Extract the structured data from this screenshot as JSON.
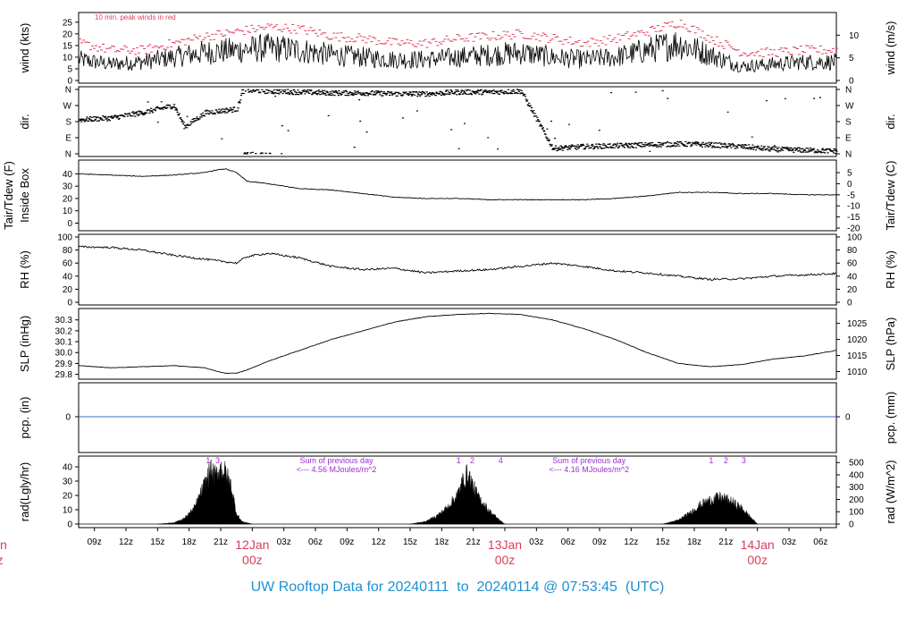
{
  "footer": {
    "prefix": "UW Rooftop Data for",
    "start": "20240111",
    "to": "to",
    "end": "20240114 @ 07:53:45",
    "tz": "(UTC)"
  },
  "colors": {
    "peak": "#e0405e",
    "day": "#d6405a",
    "sun": "#9b30d0",
    "pcp": "#3a6fc4",
    "title": "#1e90d2"
  },
  "time_axis": {
    "ticks": [
      "09z",
      "12z",
      "15z",
      "18z",
      "21z",
      "00z",
      "03z",
      "06z",
      "09z",
      "12z",
      "15z",
      "18z",
      "21z",
      "00z",
      "03z",
      "06z",
      "09z",
      "12z",
      "15z",
      "18z",
      "21z",
      "00z",
      "03z",
      "06z"
    ],
    "day_labels": [
      {
        "date": "12Jan",
        "time": "00z"
      },
      {
        "date": "13Jan",
        "time": "00z"
      },
      {
        "date": "14Jan",
        "time": "00z"
      }
    ],
    "left_clip": {
      "date": "an",
      "time": "z"
    }
  },
  "chart_data": [
    {
      "type": "line",
      "panel": "wind",
      "ylabel": "wind (kts)",
      "ylabel_right": "wind (m/s)",
      "yticks": [
        0,
        5,
        10,
        15,
        20,
        25
      ],
      "ylim": [
        0,
        28
      ],
      "yticks_right": [
        0,
        5,
        10
      ],
      "annotation": "10 min. peak winds in red",
      "series": [
        {
          "name": "wind",
          "x": [
            0,
            3,
            6,
            9,
            12,
            15,
            18,
            21,
            24,
            27,
            30,
            33,
            36,
            39,
            42,
            45,
            48,
            51,
            54,
            57,
            60,
            63,
            66,
            69,
            72
          ],
          "values": [
            9,
            7,
            8,
            10,
            12,
            13,
            14,
            13,
            11,
            10,
            9,
            9,
            10,
            11,
            12,
            10,
            9,
            10,
            13,
            16,
            11,
            6,
            7,
            8,
            8
          ]
        },
        {
          "name": "peak",
          "x": [
            0,
            3,
            6,
            9,
            12,
            15,
            18,
            21,
            24,
            27,
            30,
            33,
            36,
            39,
            42,
            45,
            48,
            51,
            54,
            57,
            60,
            63,
            66,
            69,
            72
          ],
          "values": [
            16,
            13,
            13,
            16,
            19,
            21,
            23,
            22,
            19,
            18,
            16,
            16,
            18,
            19,
            20,
            18,
            16,
            18,
            21,
            25,
            18,
            12,
            12,
            13,
            13
          ]
        }
      ]
    },
    {
      "type": "scatter",
      "panel": "direction",
      "ylabel": "dir.",
      "ylabel_right": "dir.",
      "yticks": [
        "N",
        "E",
        "S",
        "W",
        "N"
      ],
      "ylim": [
        0,
        360
      ],
      "x": [
        0,
        3,
        6,
        9,
        10,
        12,
        15,
        15.5,
        16,
        18,
        21,
        24,
        27,
        30,
        33,
        36,
        39,
        42,
        45,
        48,
        51,
        54,
        57,
        60,
        63,
        66,
        69,
        72
      ],
      "values": [
        190,
        200,
        230,
        270,
        150,
        230,
        250,
        350,
        355,
        350,
        345,
        340,
        340,
        335,
        335,
        345,
        345,
        350,
        30,
        40,
        45,
        50,
        55,
        50,
        40,
        25,
        20,
        15
      ]
    },
    {
      "type": "line",
      "panel": "temperature",
      "ylabel": "Tair/Tdew (F)",
      "ylabel2": "Inside Box",
      "ylabel_right": "Tair/Tdew (C)",
      "yticks": [
        0,
        10,
        20,
        30,
        40
      ],
      "yticks_right": [
        5,
        0,
        -5,
        -10,
        -15,
        -20
      ],
      "ylim": [
        -4,
        49
      ],
      "x": [
        0,
        3,
        6,
        9,
        12,
        13,
        14,
        15,
        16,
        18,
        21,
        24,
        27,
        30,
        33,
        36,
        39,
        42,
        45,
        48,
        51,
        54,
        57,
        60,
        63,
        66,
        69,
        72
      ],
      "values": [
        40,
        39,
        38,
        39,
        41,
        43,
        44,
        41,
        34,
        32,
        28,
        27,
        24,
        21,
        20,
        20,
        19,
        19,
        19,
        19,
        20,
        22,
        25,
        25,
        24,
        24,
        23,
        23
      ]
    },
    {
      "type": "line",
      "panel": "humidity",
      "ylabel": "RH (%)",
      "ylabel_right": "RH (%)",
      "yticks": [
        0,
        20,
        40,
        60,
        80,
        100
      ],
      "ylim": [
        0,
        100
      ],
      "x": [
        0,
        3,
        6,
        9,
        12,
        15,
        16,
        18,
        21,
        24,
        27,
        30,
        33,
        36,
        39,
        42,
        45,
        48,
        51,
        54,
        57,
        60,
        63,
        66,
        69,
        72
      ],
      "values": [
        85,
        84,
        80,
        72,
        66,
        60,
        70,
        75,
        68,
        55,
        50,
        52,
        45,
        48,
        50,
        55,
        60,
        55,
        48,
        45,
        40,
        35,
        36,
        40,
        42,
        44
      ]
    },
    {
      "type": "line",
      "panel": "pressure",
      "ylabel": "SLP (inHg)",
      "ylabel_right": "SLP (hPa)",
      "yticks": [
        29.8,
        29.9,
        30.0,
        30.1,
        30.2,
        30.3
      ],
      "yticks_right": [
        1010,
        1015,
        1020,
        1025
      ],
      "ylim": [
        29.78,
        30.38
      ],
      "x": [
        0,
        3,
        6,
        9,
        12,
        13,
        14,
        15,
        16,
        18,
        21,
        24,
        27,
        30,
        33,
        36,
        39,
        42,
        45,
        48,
        51,
        54,
        57,
        60,
        63,
        66,
        69,
        72
      ],
      "values": [
        29.88,
        29.86,
        29.87,
        29.88,
        29.86,
        29.83,
        29.81,
        29.81,
        29.84,
        29.92,
        30.02,
        30.12,
        30.2,
        30.28,
        30.33,
        30.35,
        30.36,
        30.35,
        30.3,
        30.22,
        30.12,
        30.0,
        29.9,
        29.87,
        29.89,
        29.94,
        29.97,
        30.02
      ]
    },
    {
      "type": "line",
      "panel": "precip",
      "ylabel": "pcp. (in)",
      "ylabel_right": "pcp. (mm)",
      "yticks": [
        0
      ],
      "yticks_right": [
        0
      ],
      "values": [
        0
      ]
    },
    {
      "type": "area",
      "panel": "radiation",
      "ylabel": "rad(Lgly/hr)",
      "ylabel_right": "rad (W/m^2)",
      "yticks": [
        0,
        10,
        20,
        30,
        40
      ],
      "yticks_right": [
        0,
        100,
        200,
        300,
        400,
        500
      ],
      "ylim": [
        0,
        45
      ],
      "series": [
        {
          "x": [
            7.5,
            9,
            10,
            11,
            12,
            12.5,
            13,
            13.5,
            14,
            14.5,
            15,
            15.5,
            16.5
          ],
          "values": [
            0,
            1,
            4,
            12,
            30,
            40,
            36,
            42,
            38,
            28,
            8,
            2,
            0
          ]
        },
        {
          "x": [
            31.5,
            33,
            34,
            35,
            36,
            36.5,
            37,
            37.5,
            38,
            39,
            40,
            40.5
          ],
          "values": [
            0,
            2,
            6,
            12,
            22,
            32,
            38,
            28,
            20,
            10,
            3,
            0
          ]
        },
        {
          "x": [
            55.5,
            57,
            58,
            59,
            60,
            61,
            62,
            63,
            64,
            64.5
          ],
          "values": [
            0,
            3,
            8,
            14,
            18,
            20,
            17,
            12,
            4,
            0
          ]
        }
      ],
      "sun_markers": [
        {
          "label": "1",
          "x": 12.3
        },
        {
          "label": "3",
          "x": 13.2
        },
        {
          "label": "1",
          "x": 36.1
        },
        {
          "label": "2",
          "x": 37.4
        },
        {
          "label": "4",
          "x": 40.1
        },
        {
          "label": "1",
          "x": 60.1
        },
        {
          "label": "2",
          "x": 61.5
        },
        {
          "label": "3",
          "x": 63.2
        }
      ],
      "notes": [
        {
          "line1": "Sum of previous day",
          "line2": "<--- 4.56 MJoules/m^2",
          "x": 24.5
        },
        {
          "line1": "Sum of previous day",
          "line2": "<--- 4.16 MJoules/m^2",
          "x": 48.5
        }
      ]
    }
  ]
}
